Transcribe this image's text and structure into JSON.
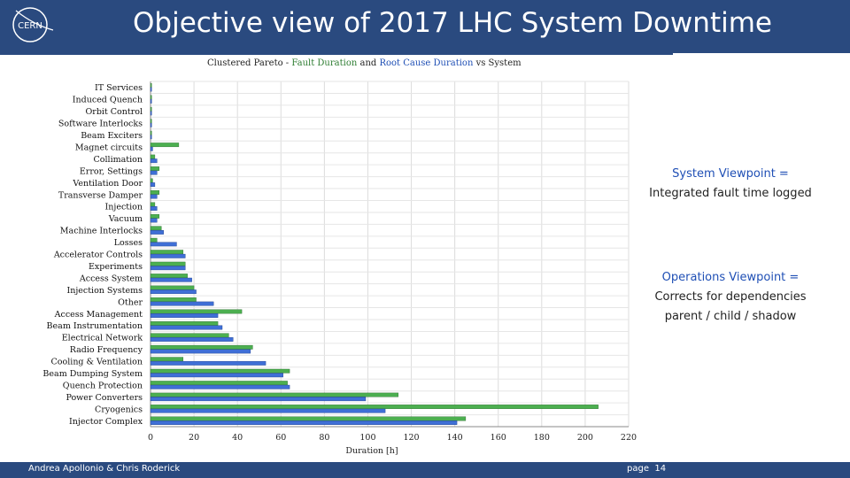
{
  "slide": {
    "title": "Objective view of 2017 LHC System Downtime",
    "logo_text": "CERN",
    "footer_authors": "Andrea Apollonio & Chris Roderick",
    "page_label": "page",
    "page_number": "14"
  },
  "callouts": {
    "system": {
      "title": "System Viewpoint =",
      "text": "Integrated fault time logged"
    },
    "operations": {
      "title": "Operations Viewpoint =",
      "line1": "Corrects for dependencies",
      "line2": "parent / child / shadow"
    }
  },
  "colors": {
    "header": "#2a4a7f",
    "fault_duration": "#4caf50",
    "root_cause_duration": "#3f6fd6"
  },
  "chart_data": {
    "type": "bar",
    "orientation": "horizontal",
    "title_parts": {
      "prefix": "Clustered Pareto - ",
      "fault": "Fault Duration",
      "mid": " and ",
      "root": "Root Cause Duration",
      "suffix": " vs System"
    },
    "xlabel": "Duration [h]",
    "xlim": [
      0,
      220
    ],
    "xticks": [
      0,
      20,
      40,
      60,
      80,
      100,
      120,
      140,
      160,
      180,
      200,
      220
    ],
    "grid": true,
    "categories": [
      "IT Services",
      "Induced Quench",
      "Orbit Control",
      "Software Interlocks",
      "Beam Exciters",
      "Magnet circuits",
      "Collimation",
      "Error, Settings",
      "Ventilation Door",
      "Transverse Damper",
      "Injection",
      "Vacuum",
      "Machine Interlocks",
      "Losses",
      "Accelerator Controls",
      "Experiments",
      "Access System",
      "Injection Systems",
      "Other",
      "Access Management",
      "Beam Instrumentation",
      "Electrical Network",
      "Radio Frequency",
      "Cooling & Ventilation",
      "Beam Dumping System",
      "Quench Protection",
      "Power Converters",
      "Cryogenics",
      "Injector Complex"
    ],
    "series": [
      {
        "name": "Fault Duration",
        "values": [
          0.5,
          0.5,
          0.5,
          0.5,
          0.5,
          13,
          2,
          4,
          1,
          4,
          2,
          4,
          5,
          3,
          15,
          16,
          17,
          20,
          21,
          42,
          31,
          36,
          47,
          15,
          64,
          63,
          114,
          206,
          145
        ]
      },
      {
        "name": "Root Cause Duration",
        "values": [
          0.5,
          0.5,
          0.5,
          0.5,
          0.5,
          1,
          3,
          3,
          2,
          3,
          3,
          3,
          6,
          12,
          16,
          16,
          19,
          21,
          29,
          31,
          33,
          38,
          46,
          53,
          61,
          64,
          99,
          108,
          141
        ]
      }
    ]
  }
}
